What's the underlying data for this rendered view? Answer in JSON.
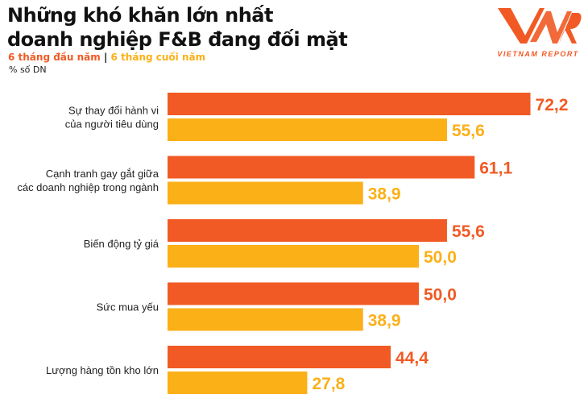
{
  "chart_data": {
    "type": "bar",
    "orientation": "horizontal",
    "title": "Những khó khăn lớn nhất doanh nghiệp F&B đang đối mặt",
    "title_lines": [
      "Những khó khăn lớn nhất",
      "doanh nghiệp F&B đang đối mặt"
    ],
    "unit": "% số DN",
    "categories": [
      [
        "Sự thay đổi hành vi",
        "của người tiêu dùng"
      ],
      [
        "Cạnh tranh gay gắt giữa",
        "các doanh nghiệp trong ngành"
      ],
      [
        "Biến động tỷ giá"
      ],
      [
        "Sức mua yếu"
      ],
      [
        "Lượng hàng tồn kho lớn"
      ]
    ],
    "series": [
      {
        "name": "6 tháng đầu năm",
        "color": "#f15a24",
        "values": [
          72.2,
          61.1,
          55.6,
          50.0,
          44.4
        ],
        "labels": [
          "72,2",
          "61,1",
          "55,6",
          "50,0",
          "44,4"
        ]
      },
      {
        "name": "6 tháng cuối năm",
        "color": "#fbb017",
        "values": [
          55.6,
          38.9,
          50.0,
          38.9,
          27.8
        ],
        "labels": [
          "55,6",
          "38,9",
          "50,0",
          "38,9",
          "27,8"
        ]
      }
    ],
    "legend_separator": "|",
    "xlim": [
      0,
      80
    ],
    "grid": false,
    "legend_placement": "top-left"
  },
  "logo": {
    "mark": "VNR",
    "text": "VIETNAM REPORT",
    "color": "#f15a24"
  }
}
